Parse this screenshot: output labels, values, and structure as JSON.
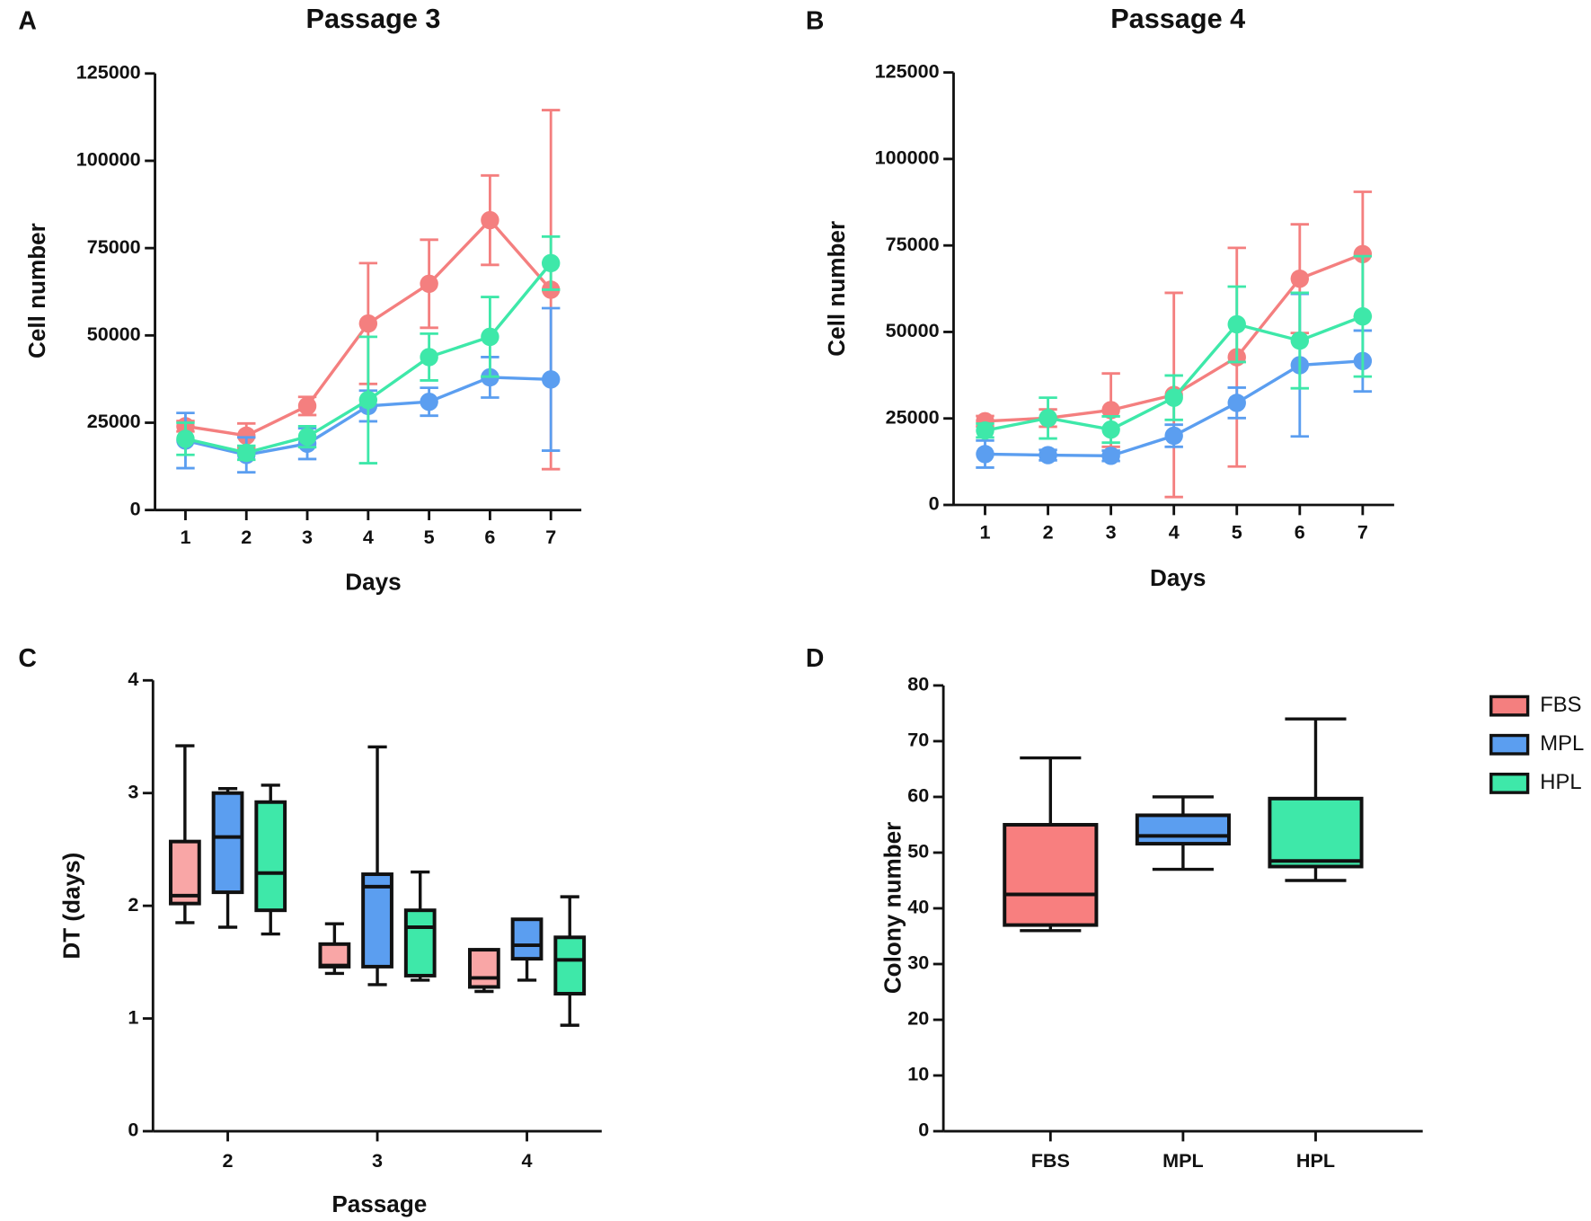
{
  "legend": {
    "entries": [
      {
        "name": "FBS",
        "color": "#f47f7f"
      },
      {
        "name": "MPL",
        "color": "#5b9ef0"
      },
      {
        "name": "HPL",
        "color": "#3ee8a9"
      }
    ]
  },
  "chart_data": [
    {
      "type": "line",
      "panel": "A",
      "title": "Passage 3",
      "x_label": "Days",
      "y_label": "Cell number",
      "x": [
        1,
        2,
        3,
        4,
        5,
        6,
        7
      ],
      "xlim": [
        0.5,
        7.5
      ],
      "xticks": [
        1,
        2,
        3,
        4,
        5,
        6,
        7
      ],
      "ylim": [
        0,
        125000
      ],
      "yticks": [
        0,
        25000,
        50000,
        75000,
        100000,
        125000
      ],
      "series": [
        {
          "color": "#f47f7f",
          "values": [
            24000,
            21300,
            29800,
            53400,
            64800,
            83000,
            63100
          ],
          "errors": [
            1500,
            3500,
            2600,
            17300,
            12600,
            12800,
            51400
          ]
        },
        {
          "color": "#5b9ef0",
          "values": [
            19900,
            15800,
            19000,
            29800,
            31000,
            38000,
            37400
          ],
          "errors": [
            7900,
            5000,
            4400,
            4400,
            4000,
            5800,
            20400
          ]
        },
        {
          "color": "#3ee8a9",
          "values": [
            20400,
            16400,
            21000,
            31500,
            43800,
            49600,
            70700
          ],
          "errors": [
            4600,
            2000,
            3000,
            18100,
            6700,
            11400,
            7600
          ]
        }
      ]
    },
    {
      "type": "line",
      "panel": "B",
      "title": "Passage 4",
      "x_label": "Days",
      "y_label": "Cell number",
      "x": [
        1,
        2,
        3,
        4,
        5,
        6,
        7
      ],
      "xlim": [
        0.5,
        7.5
      ],
      "xticks": [
        1,
        2,
        3,
        4,
        5,
        6,
        7
      ],
      "ylim": [
        0,
        125000
      ],
      "yticks": [
        0,
        25000,
        50000,
        75000,
        100000,
        125000
      ],
      "series": [
        {
          "color": "#f47f7f",
          "values": [
            24200,
            25100,
            27400,
            31800,
            42700,
            65400,
            72500
          ],
          "errors": [
            1500,
            2500,
            10600,
            29500,
            31600,
            15700,
            18000
          ]
        },
        {
          "color": "#5b9ef0",
          "values": [
            14700,
            14400,
            14200,
            20000,
            29500,
            40400,
            41600
          ],
          "errors": [
            3900,
            1500,
            1500,
            3200,
            4400,
            20600,
            8800
          ]
        },
        {
          "color": "#3ee8a9",
          "values": [
            21500,
            25100,
            21800,
            31000,
            52200,
            47500,
            54500
          ],
          "errors": [
            2000,
            5900,
            3800,
            6400,
            10900,
            13800,
            17400
          ]
        }
      ]
    },
    {
      "type": "box",
      "panel": "C",
      "x_label": "Passage",
      "y_label": "DT (days)",
      "categories": [
        "2",
        "3",
        "4"
      ],
      "ylim": [
        0,
        4
      ],
      "yticks": [
        0,
        1,
        2,
        3,
        4
      ],
      "series": [
        {
          "color": "#f9a6a6",
          "min": [
            1.85,
            1.4,
            1.24
          ],
          "q1": [
            2.02,
            1.46,
            1.28
          ],
          "median": [
            2.09,
            1.47,
            1.36
          ],
          "q3": [
            2.57,
            1.66,
            1.61
          ],
          "max": [
            3.42,
            1.84,
            1.61
          ]
        },
        {
          "color": "#5b9ef0",
          "min": [
            1.81,
            1.3,
            1.34
          ],
          "q1": [
            2.12,
            1.46,
            1.53
          ],
          "median": [
            2.61,
            2.17,
            1.65
          ],
          "q3": [
            3.0,
            2.28,
            1.88
          ],
          "max": [
            3.04,
            3.41,
            1.88
          ]
        },
        {
          "color": "#3ee8a9",
          "min": [
            1.75,
            1.34,
            0.94
          ],
          "q1": [
            1.96,
            1.38,
            1.22
          ],
          "median": [
            2.29,
            1.81,
            1.52
          ],
          "q3": [
            2.92,
            1.96,
            1.72
          ],
          "max": [
            3.07,
            2.3,
            2.08
          ]
        }
      ]
    },
    {
      "type": "box",
      "panel": "D",
      "y_label": "Colony number",
      "categories": [
        "FBS",
        "MPL",
        "HPL"
      ],
      "ylim": [
        0,
        80
      ],
      "yticks": [
        0,
        10,
        20,
        30,
        40,
        50,
        60,
        70,
        80
      ],
      "series": [
        {
          "colors": [
            "#f87f7f",
            "#5b9ef0",
            "#3ee8a9"
          ],
          "min": [
            36,
            47,
            45
          ],
          "q1": [
            37,
            51.6,
            47.5
          ],
          "median": [
            42.5,
            53,
            48.5
          ],
          "q3": [
            55,
            56.7,
            59.7
          ],
          "max": [
            67,
            60,
            74
          ]
        }
      ]
    }
  ]
}
